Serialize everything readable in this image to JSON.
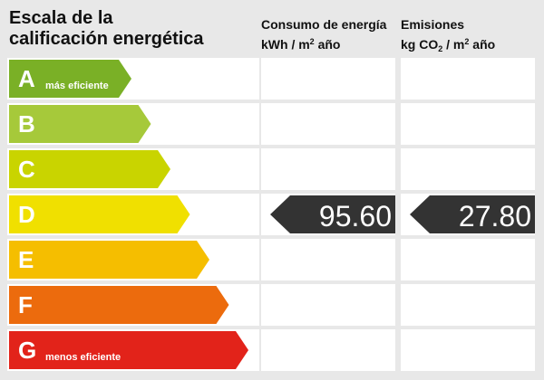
{
  "title": "Escala de la\ncalificación energética",
  "columns": {
    "energy": {
      "label": "Consumo de energía",
      "unit_prefix": "kWh / m",
      "unit_sup": "2",
      "unit_suffix": " año"
    },
    "emissions": {
      "label": "Emisiones",
      "unit_prefix": "kg CO",
      "unit_sub": "2",
      "unit_mid": " / m",
      "unit_sup": "2",
      "unit_suffix": " año"
    }
  },
  "ratings": [
    {
      "letter": "A",
      "caption": "más eficiente",
      "color": "#7ab026"
    },
    {
      "letter": "B",
      "caption": "",
      "color": "#a6c93a"
    },
    {
      "letter": "C",
      "caption": "",
      "color": "#c9d400"
    },
    {
      "letter": "D",
      "caption": "",
      "color": "#f0e000"
    },
    {
      "letter": "E",
      "caption": "",
      "color": "#f5be00"
    },
    {
      "letter": "F",
      "caption": "",
      "color": "#ec6b0d"
    },
    {
      "letter": "G",
      "caption": "menos eficiente",
      "color": "#e2231a"
    }
  ],
  "current": {
    "rating": "D",
    "energy_value": "95.60",
    "emissions_value": "27.80",
    "pointer_color": "#333333"
  }
}
